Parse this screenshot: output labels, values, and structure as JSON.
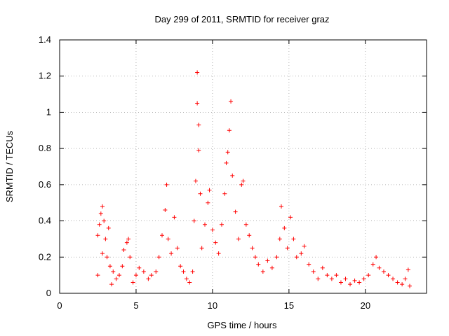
{
  "chart_data": {
    "type": "scatter",
    "title": "Day 299 of 2011, SRMTID for receiver graz",
    "xlabel": "GPS time / hours",
    "ylabel": "SRMTID / TECUs",
    "xlim": [
      0,
      24
    ],
    "ylim": [
      0,
      1.4
    ],
    "xticks": [
      0,
      5,
      10,
      15,
      20
    ],
    "xtick_labels": [
      "0",
      "5",
      "10",
      "15",
      "20"
    ],
    "yticks": [
      0,
      0.2,
      0.4,
      0.6,
      0.8,
      1.0,
      1.2,
      1.4
    ],
    "ytick_labels": [
      "0",
      "0.2",
      "0.4",
      "0.6",
      "0.8",
      "1",
      "1.2",
      "1.4"
    ],
    "grid": true,
    "marker": "+",
    "series": [
      {
        "color": "#ff0000",
        "points": [
          [
            2.5,
            0.1
          ],
          [
            2.5,
            0.32
          ],
          [
            2.6,
            0.38
          ],
          [
            2.7,
            0.44
          ],
          [
            2.8,
            0.48
          ],
          [
            2.8,
            0.22
          ],
          [
            2.9,
            0.4
          ],
          [
            3.0,
            0.3
          ],
          [
            3.1,
            0.2
          ],
          [
            3.2,
            0.36
          ],
          [
            3.3,
            0.15
          ],
          [
            3.4,
            0.05
          ],
          [
            3.5,
            0.12
          ],
          [
            3.7,
            0.08
          ],
          [
            3.9,
            0.1
          ],
          [
            4.1,
            0.15
          ],
          [
            4.2,
            0.24
          ],
          [
            4.4,
            0.28
          ],
          [
            4.5,
            0.3
          ],
          [
            4.6,
            0.2
          ],
          [
            4.8,
            0.06
          ],
          [
            5.0,
            0.1
          ],
          [
            5.2,
            0.14
          ],
          [
            5.5,
            0.12
          ],
          [
            5.8,
            0.08
          ],
          [
            6.0,
            0.1
          ],
          [
            6.3,
            0.12
          ],
          [
            6.5,
            0.2
          ],
          [
            6.7,
            0.32
          ],
          [
            6.9,
            0.46
          ],
          [
            7.0,
            0.6
          ],
          [
            7.1,
            0.3
          ],
          [
            7.3,
            0.22
          ],
          [
            7.5,
            0.42
          ],
          [
            7.7,
            0.25
          ],
          [
            7.9,
            0.15
          ],
          [
            8.1,
            0.12
          ],
          [
            8.3,
            0.08
          ],
          [
            8.5,
            0.06
          ],
          [
            8.7,
            0.12
          ],
          [
            8.8,
            0.4
          ],
          [
            8.9,
            0.62
          ],
          [
            9.0,
            1.05
          ],
          [
            9.0,
            1.22
          ],
          [
            9.1,
            0.93
          ],
          [
            9.1,
            0.79
          ],
          [
            9.2,
            0.55
          ],
          [
            9.3,
            0.25
          ],
          [
            9.5,
            0.38
          ],
          [
            9.7,
            0.5
          ],
          [
            9.8,
            0.57
          ],
          [
            10.0,
            0.35
          ],
          [
            10.2,
            0.28
          ],
          [
            10.4,
            0.22
          ],
          [
            10.6,
            0.38
          ],
          [
            10.8,
            0.55
          ],
          [
            10.9,
            0.72
          ],
          [
            11.0,
            0.78
          ],
          [
            11.1,
            0.9
          ],
          [
            11.2,
            1.06
          ],
          [
            11.3,
            0.65
          ],
          [
            11.5,
            0.45
          ],
          [
            11.7,
            0.3
          ],
          [
            11.9,
            0.6
          ],
          [
            12.0,
            0.62
          ],
          [
            12.2,
            0.38
          ],
          [
            12.4,
            0.32
          ],
          [
            12.6,
            0.25
          ],
          [
            12.8,
            0.2
          ],
          [
            13.0,
            0.16
          ],
          [
            13.3,
            0.12
          ],
          [
            13.6,
            0.18
          ],
          [
            13.9,
            0.14
          ],
          [
            14.2,
            0.2
          ],
          [
            14.4,
            0.3
          ],
          [
            14.5,
            0.48
          ],
          [
            14.7,
            0.36
          ],
          [
            14.9,
            0.25
          ],
          [
            15.1,
            0.42
          ],
          [
            15.3,
            0.3
          ],
          [
            15.5,
            0.2
          ],
          [
            15.8,
            0.22
          ],
          [
            16.0,
            0.26
          ],
          [
            16.3,
            0.16
          ],
          [
            16.6,
            0.12
          ],
          [
            16.9,
            0.08
          ],
          [
            17.2,
            0.14
          ],
          [
            17.5,
            0.1
          ],
          [
            17.8,
            0.08
          ],
          [
            18.1,
            0.1
          ],
          [
            18.4,
            0.06
          ],
          [
            18.7,
            0.08
          ],
          [
            19.0,
            0.05
          ],
          [
            19.3,
            0.07
          ],
          [
            19.6,
            0.06
          ],
          [
            19.9,
            0.08
          ],
          [
            20.2,
            0.1
          ],
          [
            20.5,
            0.16
          ],
          [
            20.7,
            0.2
          ],
          [
            20.9,
            0.14
          ],
          [
            21.2,
            0.12
          ],
          [
            21.5,
            0.1
          ],
          [
            21.8,
            0.08
          ],
          [
            22.1,
            0.06
          ],
          [
            22.4,
            0.05
          ],
          [
            22.6,
            0.08
          ],
          [
            22.8,
            0.13
          ],
          [
            22.9,
            0.04
          ]
        ]
      }
    ]
  }
}
